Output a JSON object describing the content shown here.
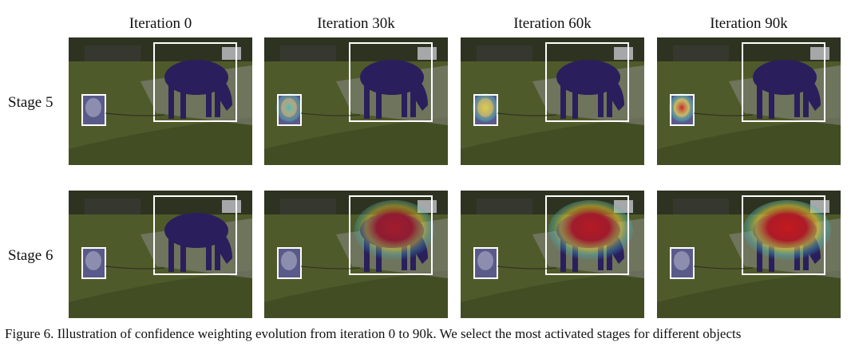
{
  "figure": {
    "column_headers": [
      "Iteration 0",
      "Iteration 30k",
      "Iteration 60k",
      "Iteration 90k"
    ],
    "row_labels": [
      "Stage 5",
      "Stage 6"
    ],
    "caption": "Figure 6. Illustration of confidence weighting evolution from iteration 0 to 90k. We select the most activated stages for different objects",
    "panels": [
      {
        "row": 0,
        "col": 0,
        "dog_heat": 0.0,
        "horse_heat": 0.0
      },
      {
        "row": 0,
        "col": 1,
        "dog_heat": 0.35,
        "horse_heat": 0.0
      },
      {
        "row": 0,
        "col": 2,
        "dog_heat": 0.55,
        "horse_heat": 0.0
      },
      {
        "row": 0,
        "col": 3,
        "dog_heat": 1.0,
        "horse_heat": 0.0
      },
      {
        "row": 1,
        "col": 0,
        "dog_heat": 0.0,
        "horse_heat": 0.0
      },
      {
        "row": 1,
        "col": 1,
        "dog_heat": 0.0,
        "horse_heat": 0.55
      },
      {
        "row": 1,
        "col": 2,
        "dog_heat": 0.0,
        "horse_heat": 0.8
      },
      {
        "row": 1,
        "col": 3,
        "dog_heat": 0.0,
        "horse_heat": 1.0
      }
    ],
    "colors": {
      "grass": "#4f5a2a",
      "path": "#8a8a86",
      "horse": "#2a1f5c",
      "box": "#ffffff",
      "heat_hot": "#cc1a1a",
      "heat_warm": "#e8d43a",
      "heat_cool": "#3fb8c8"
    }
  }
}
